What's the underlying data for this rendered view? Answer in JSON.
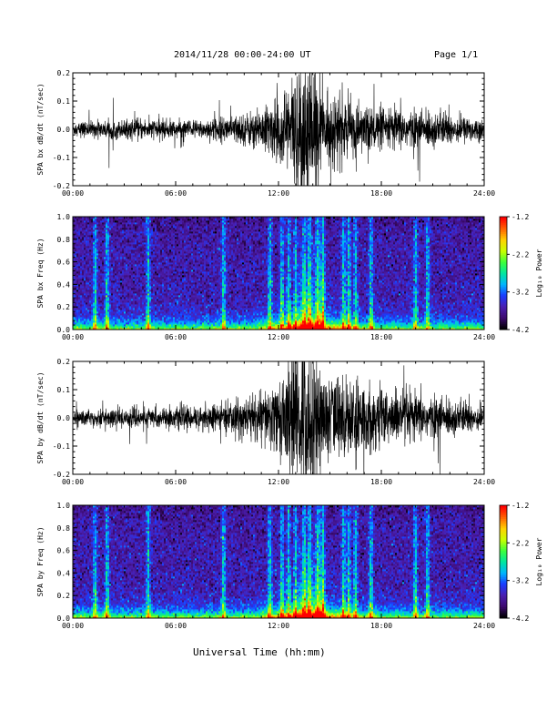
{
  "header": {
    "date_range": "2014/11/28  00:00-24:00 UT",
    "page": "Page 1/1"
  },
  "footer": {
    "xlabel": "Universal Time (hh:mm)"
  },
  "colors": {
    "trace": "#000000",
    "colorbar": [
      "#000000",
      "#3c0a6e",
      "#4a1fb0",
      "#1a3cff",
      "#00b4ff",
      "#00e6a0",
      "#3cff3c",
      "#c8ff00",
      "#ffd200",
      "#ff6400",
      "#ff0000"
    ]
  },
  "chart_data": [
    {
      "type": "line",
      "ylabel": "SPA bx dB/dt (nT/sec)",
      "xlim": [
        "00:00",
        "24:00"
      ],
      "ylim": [
        -0.2,
        0.2
      ],
      "x_ticks": [
        "00:00",
        "06:00",
        "12:00",
        "18:00",
        "24:00"
      ],
      "y_ticks": [
        "-0.2",
        "-0.1",
        "0.0",
        "0.1",
        "0.2"
      ],
      "envelope": {
        "hours": [
          0,
          1,
          2,
          3,
          4,
          5,
          6,
          7,
          8,
          9,
          10,
          11,
          12,
          12.5,
          13,
          13.5,
          14,
          14.5,
          15,
          15.5,
          16,
          17,
          18,
          19,
          20,
          21,
          22,
          23,
          24
        ],
        "amplitude": [
          0.03,
          0.03,
          0.035,
          0.035,
          0.04,
          0.04,
          0.035,
          0.035,
          0.04,
          0.05,
          0.06,
          0.08,
          0.12,
          0.18,
          0.22,
          0.3,
          0.25,
          0.15,
          0.12,
          0.14,
          0.11,
          0.09,
          0.08,
          0.08,
          0.07,
          0.07,
          0.06,
          0.05,
          0.04
        ]
      }
    },
    {
      "type": "heatmap",
      "ylabel": "SPA bx Freq (Hz)",
      "xlim": [
        "00:00",
        "24:00"
      ],
      "ylim": [
        0.0,
        1.0
      ],
      "x_ticks": [
        "00:00",
        "06:00",
        "12:00",
        "18:00",
        "24:00"
      ],
      "y_ticks": [
        "0.0",
        "0.2",
        "0.4",
        "0.6",
        "0.8",
        "1.0"
      ],
      "colorbar": {
        "label": "Log₁₀ Power",
        "ticks": [
          "-1.2",
          "-2.2",
          "-3.2",
          "-4.2"
        ],
        "range": [
          -4.2,
          -1.2
        ]
      },
      "bright_bands_hours": [
        1.3,
        2.0,
        4.4,
        8.8,
        11.5,
        12.2,
        12.6,
        13.0,
        13.5,
        13.8,
        14.3,
        14.6,
        15.8,
        16.1,
        16.5,
        17.4,
        20.0,
        20.7
      ]
    },
    {
      "type": "line",
      "ylabel": "SPA by dB/dt (nT/sec)",
      "xlim": [
        "00:00",
        "24:00"
      ],
      "ylim": [
        -0.2,
        0.2
      ],
      "x_ticks": [
        "00:00",
        "06:00",
        "12:00",
        "18:00",
        "24:00"
      ],
      "y_ticks": [
        "-0.2",
        "-0.1",
        "0.0",
        "0.1",
        "0.2"
      ],
      "envelope": {
        "hours": [
          0,
          1,
          2,
          3,
          4,
          5,
          6,
          7,
          8,
          9,
          10,
          11,
          12,
          12.5,
          13,
          13.5,
          14,
          14.5,
          15,
          15.5,
          16,
          17,
          18,
          19,
          20,
          21,
          22,
          23,
          24
        ],
        "amplitude": [
          0.03,
          0.035,
          0.035,
          0.04,
          0.04,
          0.04,
          0.04,
          0.045,
          0.05,
          0.06,
          0.08,
          0.1,
          0.14,
          0.2,
          0.25,
          0.3,
          0.28,
          0.2,
          0.16,
          0.17,
          0.15,
          0.13,
          0.12,
          0.1,
          0.09,
          0.08,
          0.07,
          0.06,
          0.05
        ]
      }
    },
    {
      "type": "heatmap",
      "ylabel": "SPA by Freq (Hz)",
      "xlim": [
        "00:00",
        "24:00"
      ],
      "ylim": [
        0.0,
        1.0
      ],
      "x_ticks": [
        "00:00",
        "06:00",
        "12:00",
        "18:00",
        "24:00"
      ],
      "y_ticks": [
        "0.0",
        "0.2",
        "0.4",
        "0.6",
        "0.8",
        "1.0"
      ],
      "colorbar": {
        "label": "Log₁₀ Power",
        "ticks": [
          "-1.2",
          "-2.2",
          "-3.2",
          "-4.2"
        ],
        "range": [
          -4.2,
          -1.2
        ]
      },
      "bright_bands_hours": [
        1.3,
        2.0,
        4.4,
        8.8,
        11.5,
        12.2,
        12.6,
        13.0,
        13.5,
        13.8,
        14.3,
        14.6,
        15.8,
        16.1,
        16.5,
        17.4,
        20.0,
        20.7
      ]
    }
  ]
}
